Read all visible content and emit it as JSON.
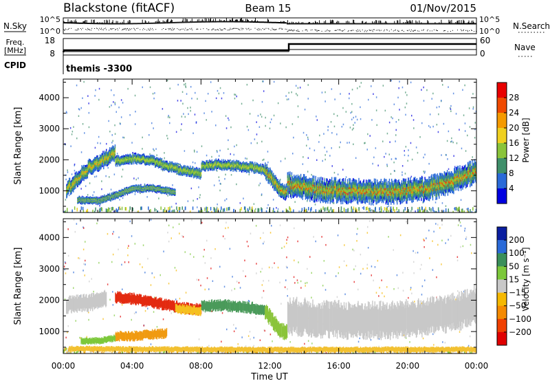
{
  "header": {
    "title": "Blackstone (fitACF)",
    "beam": "Beam 15",
    "date": "01/Nov/2015"
  },
  "summary": {
    "nsky_label": "N.Sky",
    "nsky_ticks": [
      "10^5",
      "10^0"
    ],
    "nsearch_label": "N.Search",
    "freq_label_line1": "Freq.",
    "freq_label_line2": "[MHz]",
    "freq_ticks": [
      "18",
      "8"
    ],
    "nave_label": "Nave",
    "nave_ticks": [
      "60",
      "0"
    ],
    "cpid_label": "CPID",
    "cpid_value": "themis -3300"
  },
  "chart_data": [
    {
      "type": "heatmap",
      "name": "power",
      "ylabel": "Slant Range [km]",
      "xlabel": "Time UT",
      "x_ticks": [
        "00:00",
        "04:00",
        "08:00",
        "12:00",
        "16:00",
        "20:00",
        "00:00"
      ],
      "y_ticks": [
        1000,
        2000,
        3000,
        4000
      ],
      "ylim": [
        300,
        4600
      ],
      "colorbar": {
        "label": "Power [dB]",
        "ticks": [
          4,
          8,
          12,
          16,
          20,
          24,
          28
        ],
        "range": [
          0,
          32
        ],
        "colors": [
          "#0000e0",
          "#2a6ad8",
          "#3f8f6a",
          "#8ac43a",
          "#f0d020",
          "#f59a00",
          "#f04a00",
          "#e80000"
        ]
      },
      "bands": [
        {
          "t0": 0.15,
          "t1": 3.0,
          "points": [
            [
              0.15,
              1050
            ],
            [
              0.5,
              1200
            ],
            [
              1.0,
              1500
            ],
            [
              1.5,
              1750
            ],
            [
              2.0,
              1900
            ],
            [
              2.5,
              2050
            ],
            [
              3.0,
              2250
            ]
          ],
          "width": 450,
          "level": 22
        },
        {
          "t0": 3.0,
          "t1": 8.0,
          "points": [
            [
              3.0,
              1950
            ],
            [
              4.0,
              2050
            ],
            [
              5.0,
              2000
            ],
            [
              6.0,
              1800
            ],
            [
              7.0,
              1650
            ],
            [
              8.0,
              1550
            ]
          ],
          "width": 300,
          "level": 15
        },
        {
          "t0": 0.8,
          "t1": 6.5,
          "points": [
            [
              0.8,
              700
            ],
            [
              2.0,
              680
            ],
            [
              3.0,
              850
            ],
            [
              4.0,
              1050
            ],
            [
              5.0,
              1100
            ],
            [
              6.0,
              1000
            ],
            [
              6.5,
              950
            ]
          ],
          "width": 220,
          "level": 6
        },
        {
          "t0": 8.0,
          "t1": 11.7,
          "points": [
            [
              8.0,
              1800
            ],
            [
              9.0,
              1850
            ],
            [
              10.0,
              1800
            ],
            [
              11.0,
              1750
            ],
            [
              11.7,
              1650
            ]
          ],
          "width": 300,
          "level": 16
        },
        {
          "t0": 11.7,
          "t1": 13.0,
          "points": [
            [
              11.7,
              1650
            ],
            [
              12.2,
              1300
            ],
            [
              12.6,
              1050
            ],
            [
              13.0,
              950
            ]
          ],
          "width": 450,
          "level": 24
        },
        {
          "t0": 13.0,
          "t1": 24.0,
          "points": [
            [
              13.0,
              1200
            ],
            [
              14.0,
              1100
            ],
            [
              15.0,
              1020
            ],
            [
              16.0,
              1000
            ],
            [
              17.0,
              980
            ],
            [
              18.0,
              960
            ],
            [
              19.0,
              980
            ],
            [
              20.0,
              1000
            ],
            [
              21.0,
              1060
            ],
            [
              22.0,
              1180
            ],
            [
              23.0,
              1400
            ],
            [
              24.0,
              1650
            ]
          ],
          "width": 650,
          "level": 25
        }
      ]
    },
    {
      "type": "heatmap",
      "name": "velocity",
      "ylabel": "Slant Range [km]",
      "xlabel": "Time UT",
      "x_ticks": [
        "00:00",
        "04:00",
        "08:00",
        "12:00",
        "16:00",
        "20:00",
        "00:00"
      ],
      "y_ticks": [
        1000,
        2000,
        3000,
        4000
      ],
      "ylim": [
        300,
        4600
      ],
      "colorbar": {
        "label": "Velocity [m s⁻¹]",
        "ticks": [
          200,
          100,
          50,
          15,
          -15,
          -50,
          -100,
          -200
        ],
        "colors": [
          "#0a1ea0",
          "#2a6ad8",
          "#3a8f5a",
          "#7cc83a",
          "#c8c8c8",
          "#f5b800",
          "#f58a00",
          "#f04000",
          "#e00000"
        ]
      },
      "bands": [
        {
          "t0": 0.15,
          "t1": 2.5,
          "points": [
            [
              0.15,
              1850
            ],
            [
              1.0,
              1900
            ],
            [
              2.0,
              1950
            ],
            [
              2.5,
              2050
            ]
          ],
          "width": 450,
          "color": "#c8c8c8"
        },
        {
          "t0": 3.0,
          "t1": 8.0,
          "points": [
            [
              3.0,
              2100
            ],
            [
              4.0,
              2050
            ],
            [
              5.0,
              1950
            ],
            [
              6.0,
              1850
            ],
            [
              7.0,
              1750
            ],
            [
              8.0,
              1700
            ]
          ],
          "width": 300,
          "color": "#e32a10"
        },
        {
          "t0": 6.5,
          "t1": 8.0,
          "points": [
            [
              6.5,
              1750
            ],
            [
              7.0,
              1700
            ],
            [
              8.0,
              1650
            ]
          ],
          "width": 250,
          "color": "#f5c020"
        },
        {
          "t0": 8.0,
          "t1": 11.7,
          "points": [
            [
              8.0,
              1800
            ],
            [
              9.0,
              1850
            ],
            [
              10.0,
              1800
            ],
            [
              11.0,
              1750
            ],
            [
              11.7,
              1650
            ]
          ],
          "width": 300,
          "color": "#4a9a5a"
        },
        {
          "t0": 3.0,
          "t1": 6.0,
          "points": [
            [
              3.0,
              850
            ],
            [
              4.0,
              850
            ],
            [
              5.0,
              900
            ],
            [
              6.0,
              950
            ]
          ],
          "width": 260,
          "color": "#f09a10"
        },
        {
          "t0": 1.0,
          "t1": 3.0,
          "points": [
            [
              1.0,
              700
            ],
            [
              2.0,
              700
            ],
            [
              3.0,
              800
            ]
          ],
          "width": 180,
          "color": "#7cc83a"
        },
        {
          "t0": 11.7,
          "t1": 13.0,
          "points": [
            [
              11.7,
              1650
            ],
            [
              12.2,
              1300
            ],
            [
              12.6,
              1050
            ],
            [
              13.0,
              950
            ]
          ],
          "width": 420,
          "color": "#8ac43a"
        },
        {
          "t0": 13.0,
          "t1": 24.0,
          "points": [
            [
              13.0,
              1500
            ],
            [
              15.0,
              1400
            ],
            [
              17.0,
              1350
            ],
            [
              19.0,
              1350
            ],
            [
              21.0,
              1450
            ],
            [
              23.0,
              1650
            ],
            [
              24.0,
              1900
            ]
          ],
          "width": 950,
          "color": "#c8c8c8"
        },
        {
          "t0": 0.3,
          "t1": 24.0,
          "points": [
            [
              0.3,
              450
            ],
            [
              12.0,
              420
            ],
            [
              24.0,
              430
            ]
          ],
          "width": 150,
          "color": "#f2c030"
        }
      ]
    }
  ],
  "colors": {
    "axis": "#000000",
    "background": "#ffffff"
  }
}
